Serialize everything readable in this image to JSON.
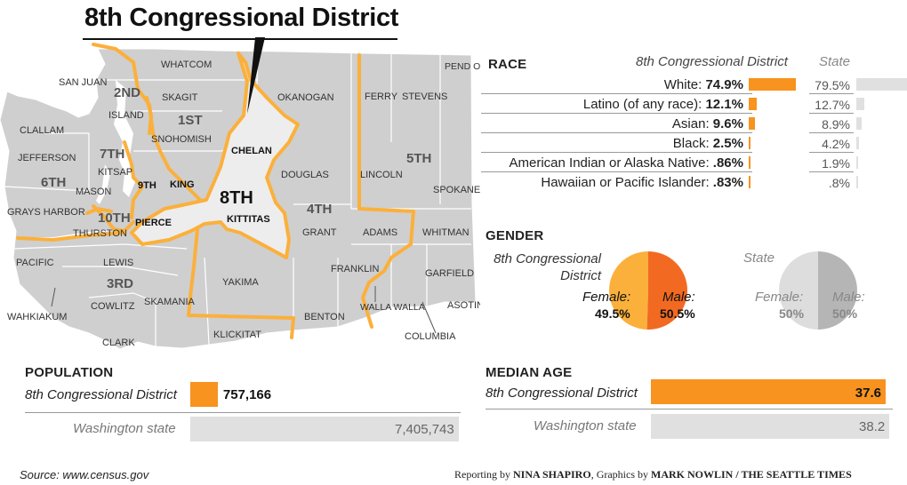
{
  "title": "8th Congressional District",
  "map": {
    "county_labels": [
      "WHATCOM",
      "SAN JUAN",
      "SKAGIT",
      "ISLAND",
      "CLALLAM",
      "SNOHOMISH",
      "JEFFERSON",
      "KITSAP",
      "MASON",
      "KING",
      "GRAYS HARBOR",
      "THURSTON",
      "PIERCE",
      "PACIFIC",
      "LEWIS",
      "WAHKIAKUM",
      "COWLITZ",
      "SKAMANIA",
      "CLARK",
      "OKANOGAN",
      "CHELAN",
      "DOUGLAS",
      "KITTITAS",
      "GRANT",
      "YAKIMA",
      "KLICKITAT",
      "BENTON",
      "FERRY",
      "STEVENS",
      "PEND OREILLE",
      "LINCOLN",
      "SPOKANE",
      "ADAMS",
      "WHITMAN",
      "FRANKLIN",
      "GARFIELD",
      "WALLA WALLA",
      "ASOTIN",
      "COLUMBIA"
    ],
    "district_labels": [
      "2ND",
      "1ST",
      "7TH",
      "6TH",
      "9TH",
      "10TH",
      "3RD",
      "8TH",
      "4TH",
      "5TH"
    ]
  },
  "race": {
    "header": "RACE",
    "col_district": "8th Congressional District",
    "col_state": "State",
    "rows": [
      {
        "label": "White:",
        "district": "74.9%",
        "district_value": 74.9,
        "state": "79.5%",
        "state_value": 79.5
      },
      {
        "label": "Latino (of any race):",
        "district": "12.1%",
        "district_value": 12.1,
        "state": "12.7%",
        "state_value": 12.7
      },
      {
        "label": "Asian:",
        "district": "9.6%",
        "district_value": 9.6,
        "state": "8.9%",
        "state_value": 8.9
      },
      {
        "label": "Black:",
        "district": "2.5%",
        "district_value": 2.5,
        "state": "4.2%",
        "state_value": 4.2
      },
      {
        "label": "American Indian or Alaska Native:",
        "district": ".86%",
        "district_value": 0.86,
        "state": "1.9%",
        "state_value": 1.9
      },
      {
        "label": "Hawaiian or Pacific Islander:",
        "district": ".83%",
        "district_value": 0.83,
        "state": ".8%",
        "state_value": 0.8
      }
    ]
  },
  "gender": {
    "header": "GENDER",
    "district_title": "8th Congressional District",
    "state_title": "State",
    "district": {
      "female_label": "Female:",
      "female": "49.5%",
      "female_value": 49.5,
      "male_label": "Male:",
      "male": "50.5%",
      "male_value": 50.5
    },
    "state": {
      "female_label": "Female:",
      "female": "50%",
      "female_value": 50,
      "male_label": "Male:",
      "male": "50%",
      "male_value": 50
    }
  },
  "population": {
    "header": "POPULATION",
    "district_label": "8th Congressional District",
    "district_value_text": "757,166",
    "district_value": 757166,
    "state_label": "Washington state",
    "state_value_text": "7,405,743",
    "state_value": 7405743
  },
  "median_age": {
    "header": "MEDIAN AGE",
    "district_label": "8th Congressional District",
    "district_value_text": "37.6",
    "district_value": 37.6,
    "state_label": "Washington state",
    "state_value_text": "38.2",
    "state_value": 38.2
  },
  "footer": {
    "source": "Source: www.census.gov",
    "credit_pre": "Reporting by ",
    "reporter": "NINA SHAPIRO",
    "credit_mid": ", Graphics by ",
    "graphics": "MARK NOWLIN / THE SEATTLE TIMES"
  },
  "colors": {
    "orange": "#f7931e",
    "orange_dark": "#f26a21",
    "orange_light": "#fbb03b",
    "gray_bar": "#e0e0e0",
    "gray_pie_light": "#d9d9d9",
    "gray_pie_dark": "#b3b3b3",
    "map_gray": "#cfcfcf"
  },
  "chart_data": [
    {
      "type": "bar",
      "title": "RACE",
      "categories": [
        "White:",
        "Latino (of any race):",
        "Asian:",
        "Black:",
        "American Indian or Alaska Native:",
        "Hawaiian or Pacific Islander:"
      ],
      "series": [
        {
          "name": "8th Congressional District",
          "values": [
            74.9,
            12.1,
            9.6,
            2.5,
            0.86,
            0.83
          ]
        },
        {
          "name": "State",
          "values": [
            79.5,
            12.7,
            8.9,
            4.2,
            1.9,
            0.8
          ]
        }
      ]
    },
    {
      "type": "pie",
      "title": "8th Congressional District",
      "categories": [
        "Female:",
        "Male:"
      ],
      "values": [
        49.5,
        50.5
      ]
    },
    {
      "type": "pie",
      "title": "State",
      "categories": [
        "Female:",
        "Male:"
      ],
      "values": [
        50,
        50
      ]
    },
    {
      "type": "bar",
      "title": "POPULATION",
      "categories": [
        "8th Congressional District",
        "Washington state"
      ],
      "values": [
        757166,
        7405743
      ]
    },
    {
      "type": "bar",
      "title": "MEDIAN AGE",
      "categories": [
        "8th Congressional District",
        "Washington state"
      ],
      "values": [
        37.6,
        38.2
      ]
    }
  ]
}
